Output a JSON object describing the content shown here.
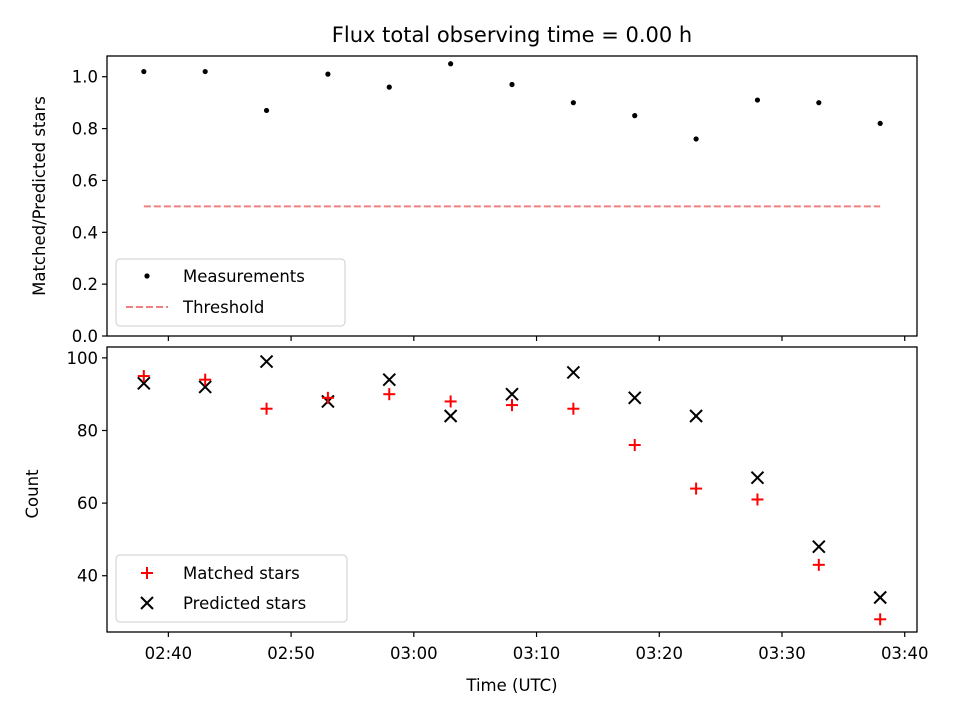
{
  "chart_data": [
    {
      "type": "scatter",
      "title": "Flux total observing time = 0.00 h",
      "xlabel": "",
      "ylabel": "Matched/Predicted stars",
      "ylim": [
        0,
        1.08
      ],
      "yticks": [
        "0.0",
        "0.2",
        "0.4",
        "0.6",
        "0.8",
        "1.0"
      ],
      "xlim": [
        "02:35",
        "03:41"
      ],
      "x": [
        "02:38",
        "02:43",
        "02:48",
        "02:53",
        "02:58",
        "03:03",
        "03:08",
        "03:13",
        "03:18",
        "03:23",
        "03:28",
        "03:33",
        "03:38"
      ],
      "series": [
        {
          "name": "Measurements",
          "marker": "dot",
          "color": "#000000",
          "values": [
            1.02,
            1.02,
            0.87,
            1.01,
            0.96,
            1.05,
            0.97,
            0.9,
            0.85,
            0.76,
            0.91,
            0.9,
            0.82
          ]
        },
        {
          "name": "Threshold",
          "marker": "dashed-line",
          "color": "#f08080",
          "x": [
            "02:38",
            "03:38"
          ],
          "values": [
            0.5,
            0.5
          ]
        }
      ],
      "legend": "lower-left",
      "grid": false
    },
    {
      "type": "scatter",
      "xlabel": "Time (UTC)",
      "ylabel": "Count",
      "ylim": [
        24.5,
        103
      ],
      "yticks": [
        "40",
        "60",
        "80",
        "100"
      ],
      "xlim": [
        "02:35",
        "03:41"
      ],
      "xticks": [
        "02:40",
        "02:50",
        "03:00",
        "03:10",
        "03:20",
        "03:30",
        "03:40"
      ],
      "x": [
        "02:38",
        "02:43",
        "02:48",
        "02:53",
        "02:58",
        "03:03",
        "03:08",
        "03:13",
        "03:18",
        "03:23",
        "03:28",
        "03:33",
        "03:38"
      ],
      "series": [
        {
          "name": "Matched stars",
          "marker": "plus",
          "color": "#ff0000",
          "values": [
            95,
            94,
            86,
            89,
            90,
            88,
            87,
            86,
            76,
            64,
            61,
            43,
            28
          ]
        },
        {
          "name": "Predicted stars",
          "marker": "x",
          "color": "#000000",
          "values": [
            93,
            92,
            99,
            88,
            94,
            84,
            90,
            96,
            89,
            84,
            67,
            48,
            34
          ]
        }
      ],
      "legend": "lower-left",
      "grid": false
    }
  ]
}
